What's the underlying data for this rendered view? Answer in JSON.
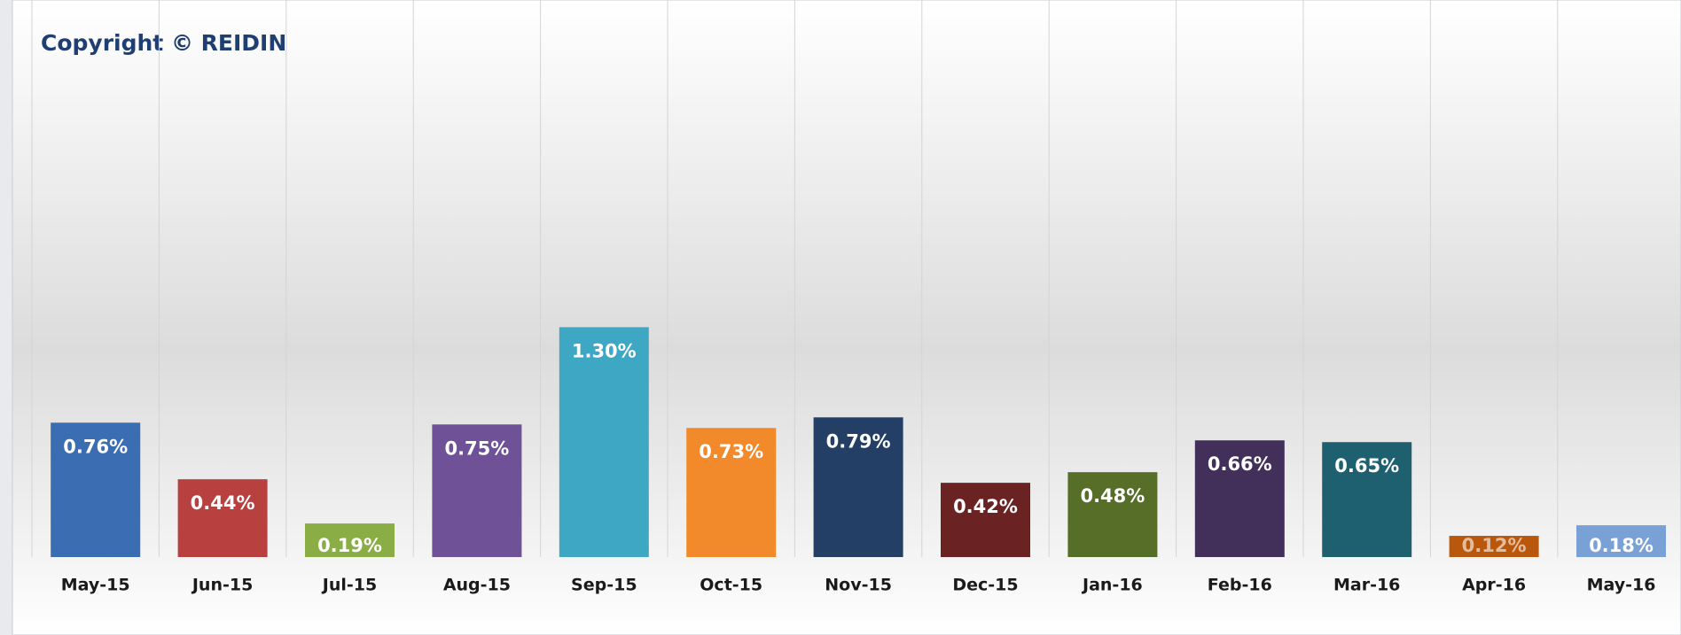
{
  "chart_data": {
    "type": "bar",
    "title": "Copyright © REIDIN",
    "categories": [
      "May-15",
      "Jun-15",
      "Jul-15",
      "Aug-15",
      "Sep-15",
      "Oct-15",
      "Nov-15",
      "Dec-15",
      "Jan-16",
      "Feb-16",
      "Mar-16",
      "Apr-16",
      "May-16"
    ],
    "values": [
      0.76,
      0.44,
      0.19,
      0.75,
      1.3,
      0.73,
      0.79,
      0.42,
      0.48,
      0.66,
      0.65,
      0.12,
      0.18
    ],
    "value_labels": [
      "0.76%",
      "0.44%",
      "0.19%",
      "0.75%",
      "1.30%",
      "0.73%",
      "0.79%",
      "0.42%",
      "0.48%",
      "0.66%",
      "0.65%",
      "0.12%",
      "0.18%"
    ],
    "colors": [
      "#3a6db2",
      "#b8403e",
      "#8aad45",
      "#6e5197",
      "#3ea8c4",
      "#f28a2c",
      "#243f66",
      "#6a2222",
      "#566e28",
      "#42305a",
      "#1f6070",
      "#b9580c",
      "#7aa1d6"
    ],
    "ylim": [
      0,
      3
    ],
    "grid": true
  }
}
